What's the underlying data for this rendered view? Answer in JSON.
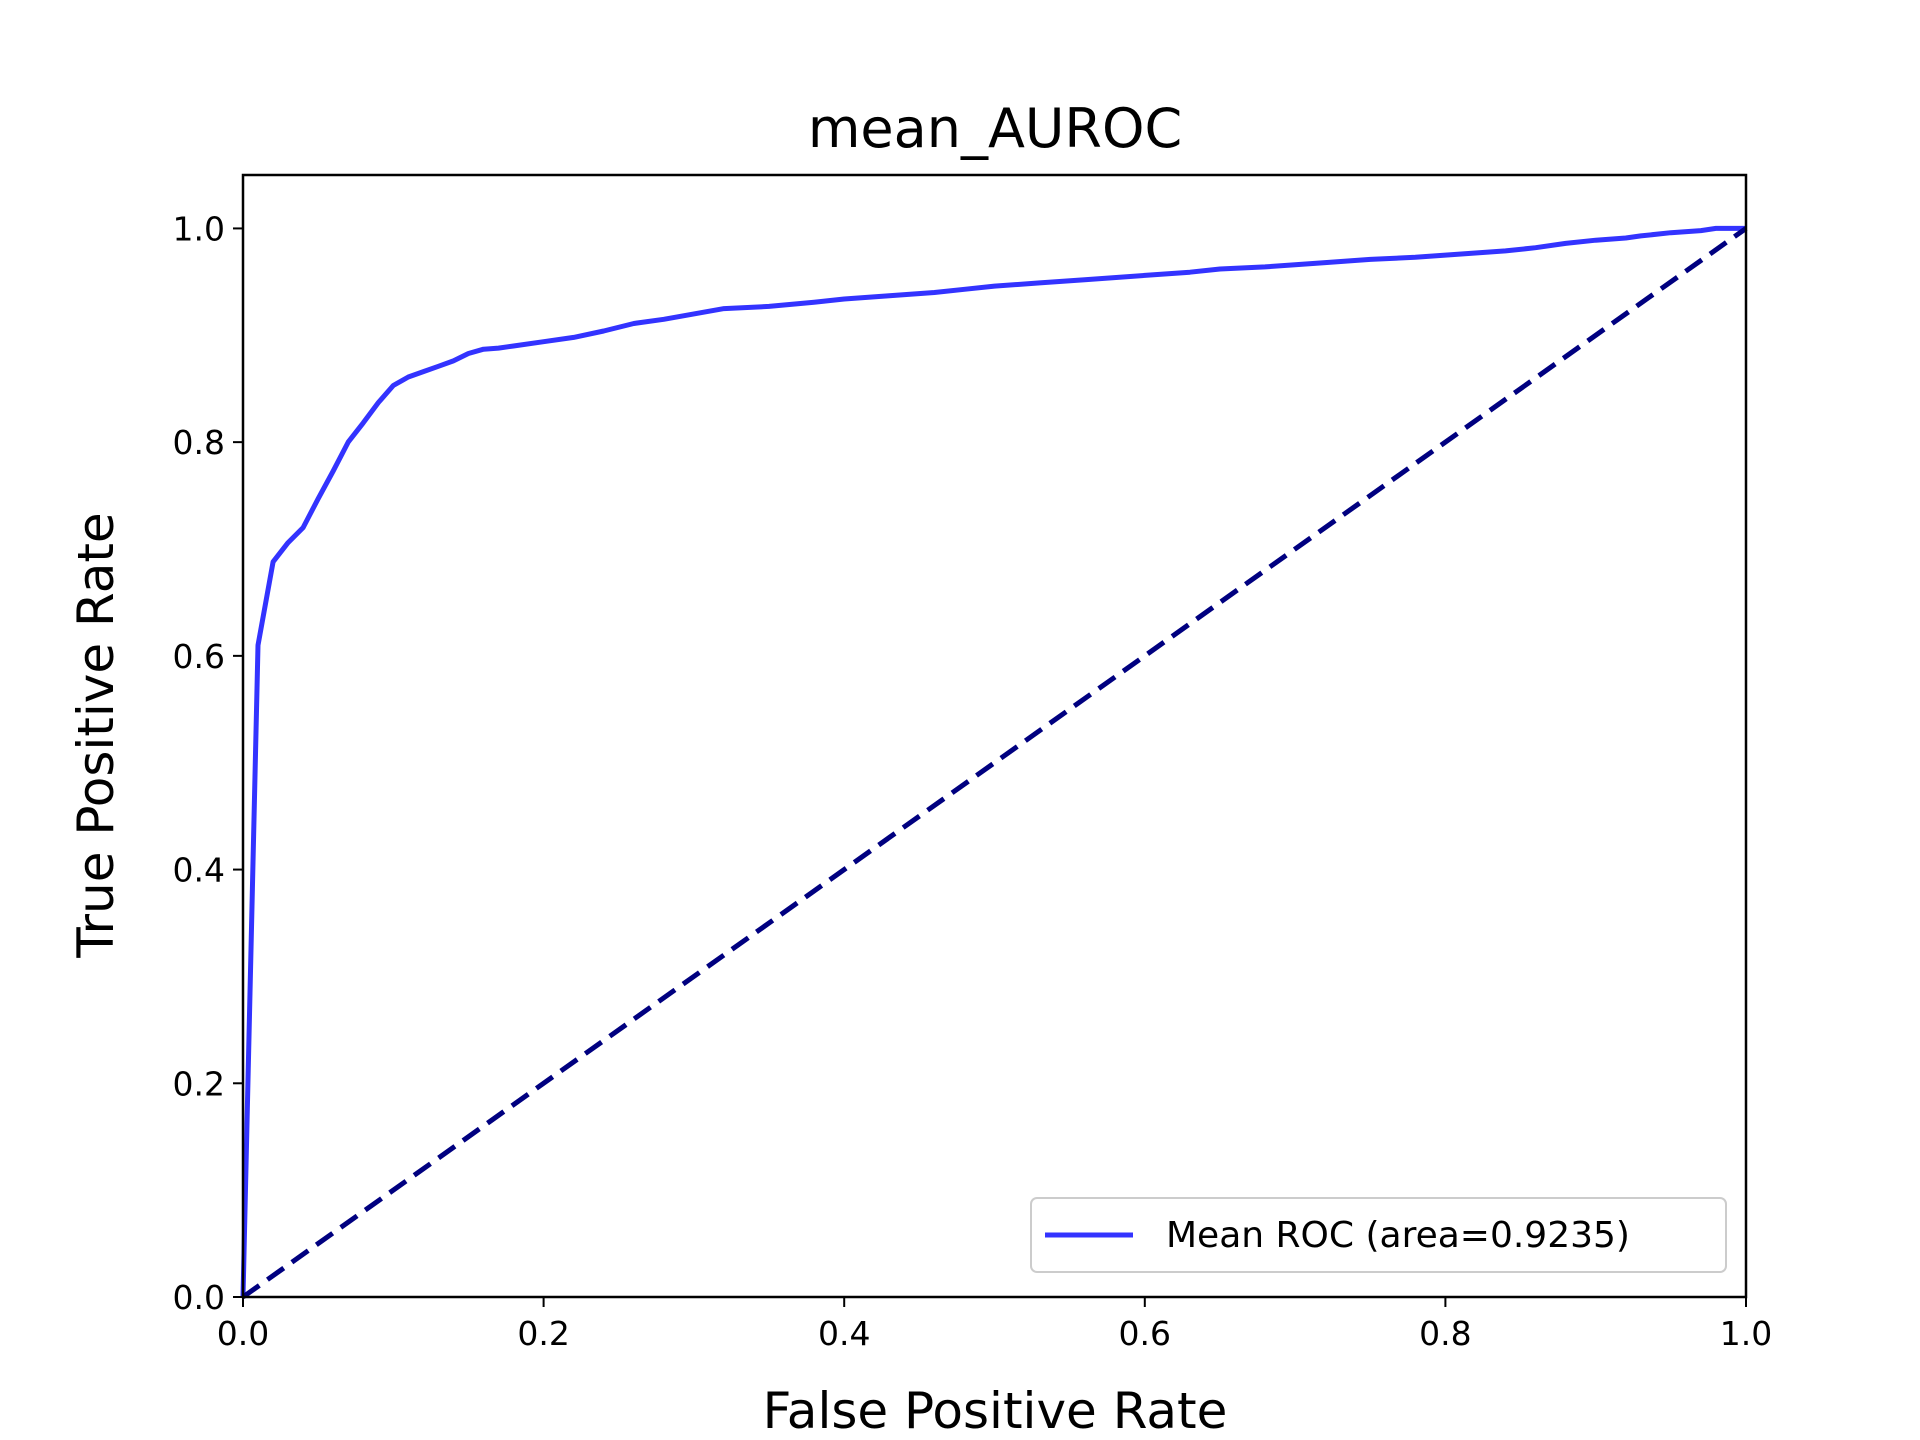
{
  "chart_data": {
    "type": "line",
    "title": "mean_AUROC",
    "xlabel": "False Positive Rate",
    "ylabel": "True Positive Rate",
    "xlim": [
      0.0,
      1.0
    ],
    "ylim": [
      0.0,
      1.05
    ],
    "xticks": [
      "0.0",
      "0.2",
      "0.4",
      "0.6",
      "0.8",
      "1.0"
    ],
    "yticks": [
      "0.0",
      "0.2",
      "0.4",
      "0.6",
      "0.8",
      "1.0"
    ],
    "grid": false,
    "legend_position": "lower-right",
    "series": [
      {
        "name": "Mean ROC (area=0.9235)",
        "color": "#3333ff",
        "style": "solid",
        "x": [
          0.0,
          0.01,
          0.02,
          0.03,
          0.04,
          0.05,
          0.06,
          0.07,
          0.08,
          0.09,
          0.1,
          0.11,
          0.12,
          0.13,
          0.14,
          0.15,
          0.16,
          0.17,
          0.18,
          0.2,
          0.22,
          0.24,
          0.26,
          0.28,
          0.3,
          0.32,
          0.35,
          0.38,
          0.4,
          0.43,
          0.46,
          0.48,
          0.5,
          0.53,
          0.56,
          0.6,
          0.63,
          0.65,
          0.68,
          0.7,
          0.72,
          0.75,
          0.78,
          0.8,
          0.82,
          0.84,
          0.86,
          0.88,
          0.9,
          0.92,
          0.93,
          0.95,
          0.97,
          0.98,
          1.0
        ],
        "y": [
          0.0,
          0.61,
          0.688,
          0.706,
          0.72,
          0.747,
          0.773,
          0.8,
          0.818,
          0.837,
          0.853,
          0.861,
          0.866,
          0.871,
          0.876,
          0.883,
          0.887,
          0.888,
          0.89,
          0.894,
          0.898,
          0.904,
          0.911,
          0.915,
          0.92,
          0.925,
          0.927,
          0.931,
          0.934,
          0.937,
          0.94,
          0.943,
          0.946,
          0.949,
          0.952,
          0.956,
          0.959,
          0.962,
          0.964,
          0.966,
          0.968,
          0.971,
          0.973,
          0.975,
          0.977,
          0.979,
          0.982,
          0.986,
          0.989,
          0.991,
          0.993,
          0.996,
          0.998,
          1.0,
          1.0
        ]
      },
      {
        "name": "",
        "color": "#000080",
        "style": "dashed",
        "x": [
          0.0,
          1.0
        ],
        "y": [
          0.0,
          1.0
        ]
      }
    ]
  }
}
